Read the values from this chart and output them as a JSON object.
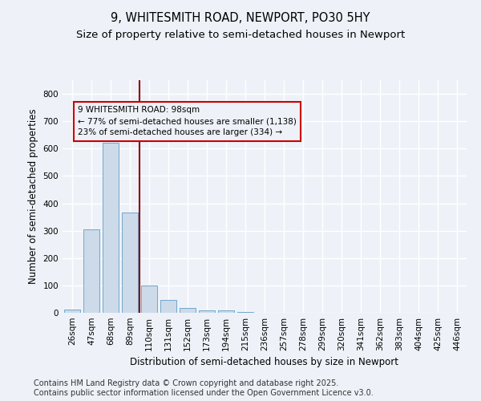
{
  "title_line1": "9, WHITESMITH ROAD, NEWPORT, PO30 5HY",
  "title_line2": "Size of property relative to semi-detached houses in Newport",
  "xlabel": "Distribution of semi-detached houses by size in Newport",
  "ylabel": "Number of semi-detached properties",
  "categories": [
    "26sqm",
    "47sqm",
    "68sqm",
    "89sqm",
    "110sqm",
    "131sqm",
    "152sqm",
    "173sqm",
    "194sqm",
    "215sqm",
    "236sqm",
    "257sqm",
    "278sqm",
    "299sqm",
    "320sqm",
    "341sqm",
    "362sqm",
    "383sqm",
    "404sqm",
    "425sqm",
    "446sqm"
  ],
  "values": [
    13,
    305,
    620,
    365,
    100,
    47,
    18,
    10,
    9,
    3,
    1,
    1,
    0,
    0,
    0,
    0,
    0,
    0,
    0,
    0,
    0
  ],
  "bar_color": "#ccdaea",
  "bar_edge_color": "#6fa8cc",
  "vline_color": "#8b0000",
  "annotation_title": "9 WHITESMITH ROAD: 98sqm",
  "annotation_line1": "← 77% of semi-detached houses are smaller (1,138)",
  "annotation_line2": "23% of semi-detached houses are larger (334) →",
  "annotation_box_color": "#cc0000",
  "ylim": [
    0,
    850
  ],
  "yticks": [
    0,
    100,
    200,
    300,
    400,
    500,
    600,
    700,
    800
  ],
  "footer_line1": "Contains HM Land Registry data © Crown copyright and database right 2025.",
  "footer_line2": "Contains public sector information licensed under the Open Government Licence v3.0.",
  "bg_color": "#eef2f8",
  "grid_color": "#ffffff",
  "title_fontsize": 10.5,
  "subtitle_fontsize": 9.5,
  "axis_label_fontsize": 8.5,
  "tick_fontsize": 7.5,
  "footer_fontsize": 7
}
